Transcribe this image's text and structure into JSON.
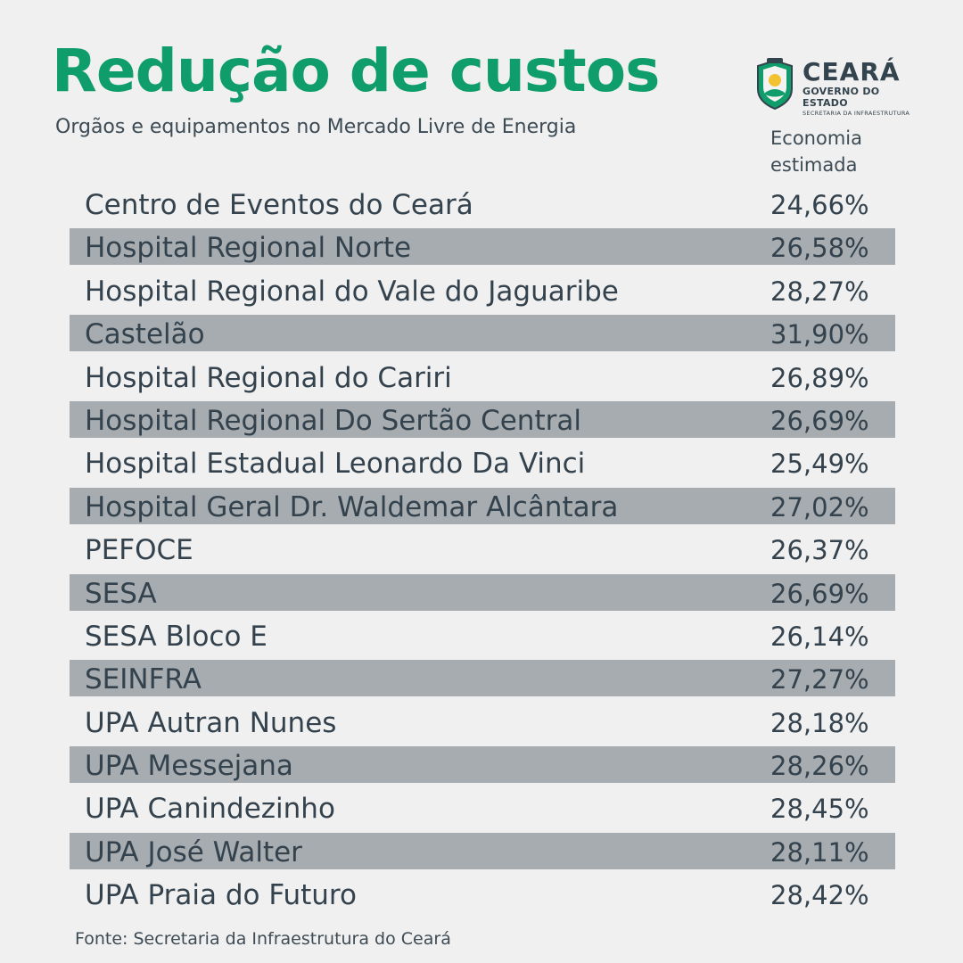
{
  "header": {
    "title": "Redução de custos",
    "subtitle": "Orgãos e equipamentos no Mercado Livre de Energia"
  },
  "logo": {
    "name": "CEARÁ",
    "government": "GOVERNO DO ESTADO",
    "secretariat": "SECRETARIA DA INFRAESTRUTURA",
    "icon": "state-coat-of-arms-icon",
    "colors": {
      "green": "#0e9d6b",
      "dark": "#34444e",
      "yellow": "#f2c230"
    }
  },
  "table": {
    "column_header_line1": "Economia",
    "column_header_line2": "estimada",
    "rows": [
      {
        "name": "Centro de Eventos do Ceará",
        "value": "24,66%"
      },
      {
        "name": "Hospital Regional Norte",
        "value": "26,58%"
      },
      {
        "name": "Hospital Regional do Vale do Jaguaribe",
        "value": "28,27%"
      },
      {
        "name": "Castelão",
        "value": "31,90%"
      },
      {
        "name": "Hospital Regional do Cariri",
        "value": "26,89%"
      },
      {
        "name": "Hospital Regional Do Sertão Central",
        "value": "26,69%"
      },
      {
        "name": "Hospital Estadual Leonardo Da Vinci",
        "value": "25,49%"
      },
      {
        "name": "Hospital Geral Dr. Waldemar Alcântara",
        "value": "27,02%"
      },
      {
        "name": "PEFOCE",
        "value": "26,37%"
      },
      {
        "name": "SESA",
        "value": "26,69%"
      },
      {
        "name": "SESA Bloco E",
        "value": "26,14%"
      },
      {
        "name": "SEINFRA",
        "value": "27,27%"
      },
      {
        "name": "UPA Autran Nunes",
        "value": "28,18%"
      },
      {
        "name": "UPA Messejana",
        "value": "28,26%"
      },
      {
        "name": "UPA Canindezinho",
        "value": "28,45%"
      },
      {
        "name": "UPA José Walter",
        "value": "28,11%"
      },
      {
        "name": "UPA Praia do Futuro",
        "value": "28,42%"
      }
    ]
  },
  "footer": {
    "source": "Fonte: Secretaria da Infraestrutura do Ceará"
  },
  "colors": {
    "background": "#f0f0f0",
    "title_green": "#0e9d6b",
    "text": "#33424d",
    "row_shade": "#a6acb0"
  }
}
